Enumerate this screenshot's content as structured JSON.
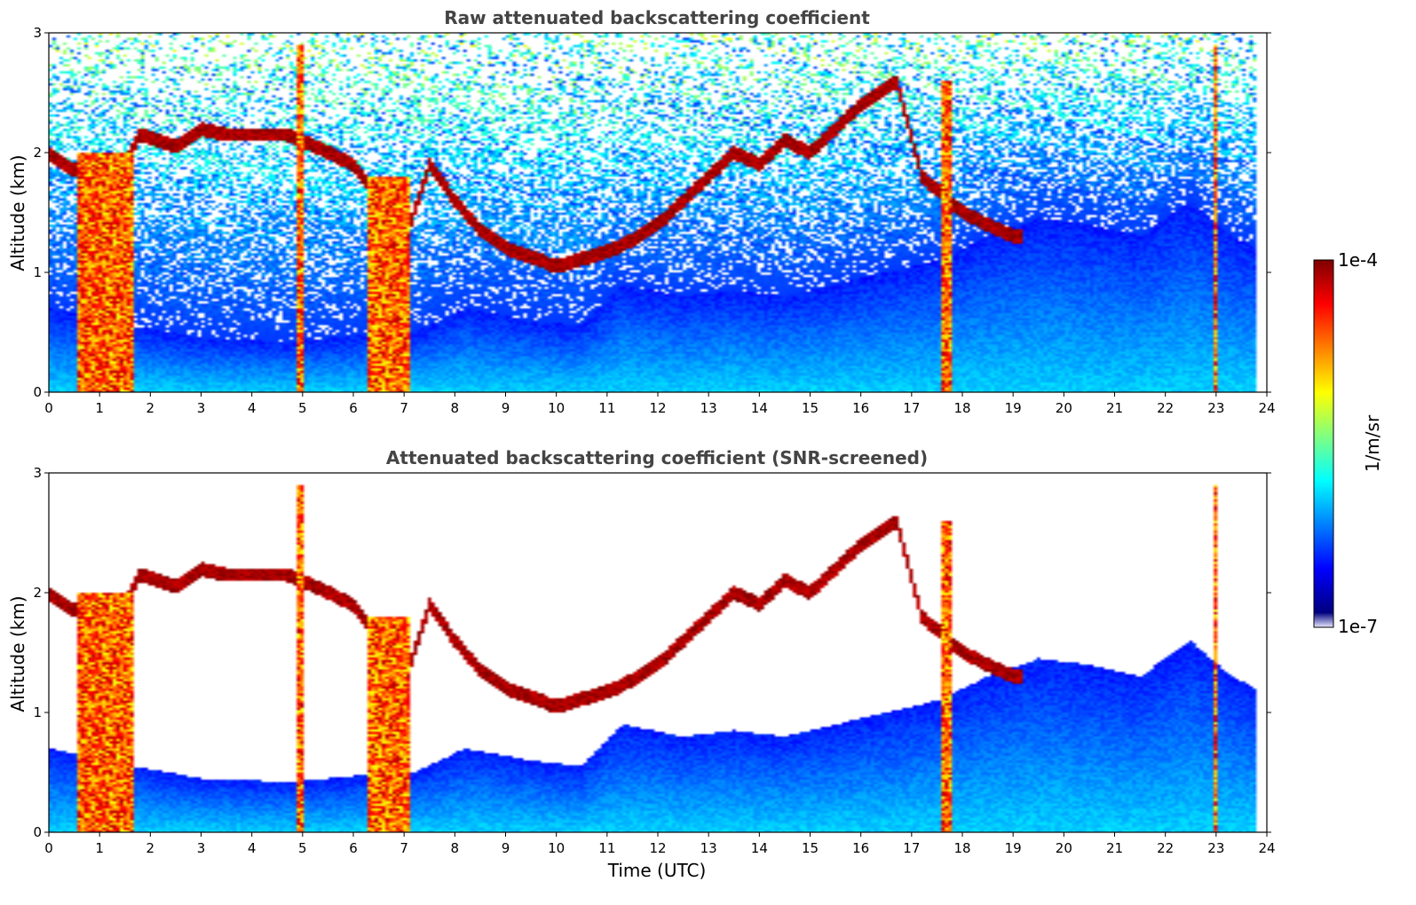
{
  "chart_data": [
    {
      "type": "heatmap",
      "title": "Raw attenuated backscattering coefficient",
      "ylabel": "Altitude (km)",
      "xlabel": "",
      "xlim": [
        0,
        24
      ],
      "ylim": [
        0,
        3
      ],
      "xticks": [
        "0",
        "1",
        "2",
        "3",
        "4",
        "5",
        "6",
        "7",
        "8",
        "9",
        "10",
        "11",
        "12",
        "13",
        "14",
        "15",
        "16",
        "17",
        "18",
        "19",
        "20",
        "21",
        "22",
        "23",
        "24"
      ],
      "yticks": [
        "0",
        "1",
        "2",
        "3"
      ],
      "data_end_time": 23.8,
      "colormap": "jet",
      "color_scale": "log",
      "noise_fill": true
    },
    {
      "type": "heatmap",
      "title": "Attenuated backscattering coefficient (SNR-screened)",
      "ylabel": "Altitude (km)",
      "xlabel": "Time (UTC)",
      "xlim": [
        0,
        24
      ],
      "ylim": [
        0,
        3
      ],
      "xticks": [
        "0",
        "1",
        "2",
        "3",
        "4",
        "5",
        "6",
        "7",
        "8",
        "9",
        "10",
        "11",
        "12",
        "13",
        "14",
        "15",
        "16",
        "17",
        "18",
        "19",
        "20",
        "21",
        "22",
        "23",
        "24"
      ],
      "yticks": [
        "0",
        "1",
        "2",
        "3"
      ],
      "data_end_time": 23.8,
      "colormap": "jet",
      "color_scale": "log",
      "noise_fill": false
    }
  ],
  "features": {
    "aerosol_layer_top_km": [
      [
        0,
        0.7
      ],
      [
        1.7,
        0.55
      ],
      [
        3,
        0.45
      ],
      [
        4.8,
        0.42
      ],
      [
        6.2,
        0.48
      ],
      [
        7.2,
        0.5
      ],
      [
        8.2,
        0.7
      ],
      [
        9.5,
        0.6
      ],
      [
        10.5,
        0.55
      ],
      [
        11.3,
        0.9
      ],
      [
        12.5,
        0.8
      ],
      [
        13.5,
        0.85
      ],
      [
        14.5,
        0.8
      ],
      [
        15.5,
        0.9
      ],
      [
        16.5,
        1.0
      ],
      [
        17.5,
        1.1
      ],
      [
        18.5,
        1.3
      ],
      [
        19.5,
        1.45
      ],
      [
        20.5,
        1.4
      ],
      [
        21.5,
        1.3
      ],
      [
        22.5,
        1.6
      ],
      [
        23.3,
        1.3
      ],
      [
        23.8,
        1.2
      ]
    ],
    "cloud_layer_km": [
      [
        0,
        2.0
      ],
      [
        0.5,
        1.85
      ],
      [
        1.5,
        1.9
      ],
      [
        1.8,
        2.15
      ],
      [
        2.5,
        2.05
      ],
      [
        3,
        2.2
      ],
      [
        3.5,
        2.15
      ],
      [
        4,
        2.15
      ],
      [
        4.7,
        2.15
      ],
      [
        5,
        2.1
      ],
      [
        6,
        1.9
      ],
      [
        6.5,
        1.6
      ],
      [
        7,
        1.25
      ],
      [
        7.5,
        1.9
      ],
      [
        8,
        1.6
      ],
      [
        8.5,
        1.35
      ],
      [
        9,
        1.2
      ],
      [
        10,
        1.05
      ],
      [
        11.2,
        1.2
      ],
      [
        12,
        1.4
      ],
      [
        12.5,
        1.6
      ],
      [
        13,
        1.8
      ],
      [
        13.5,
        2.0
      ],
      [
        14,
        1.9
      ],
      [
        14.5,
        2.1
      ],
      [
        15,
        2.0
      ],
      [
        15.5,
        2.2
      ],
      [
        16,
        2.4
      ],
      [
        16.7,
        2.6
      ],
      [
        17.2,
        1.8
      ],
      [
        18,
        1.5
      ],
      [
        18.5,
        1.4
      ],
      [
        19,
        1.3
      ]
    ],
    "dense_columns_time": [
      [
        0.55,
        1.65,
        2.0
      ],
      [
        6.3,
        7.1,
        1.8
      ],
      [
        17.6,
        17.8,
        2.6
      ],
      [
        4.9,
        5.05,
        2.9
      ],
      [
        22.95,
        23.05,
        2.9
      ]
    ],
    "colorbar_ticks": {
      "top": "1e-4",
      "bottom": "1e-7"
    },
    "colorbar_label": "1/m/sr"
  },
  "colors": {
    "jet_stops": [
      "#00007f",
      "#0000ff",
      "#0080ff",
      "#00ffff",
      "#80ff80",
      "#ffff00",
      "#ff8000",
      "#ff0000",
      "#7f0000"
    ],
    "low_end": "#e8e8ff",
    "cloud_edge": "#000000",
    "title_color": "#444444"
  }
}
